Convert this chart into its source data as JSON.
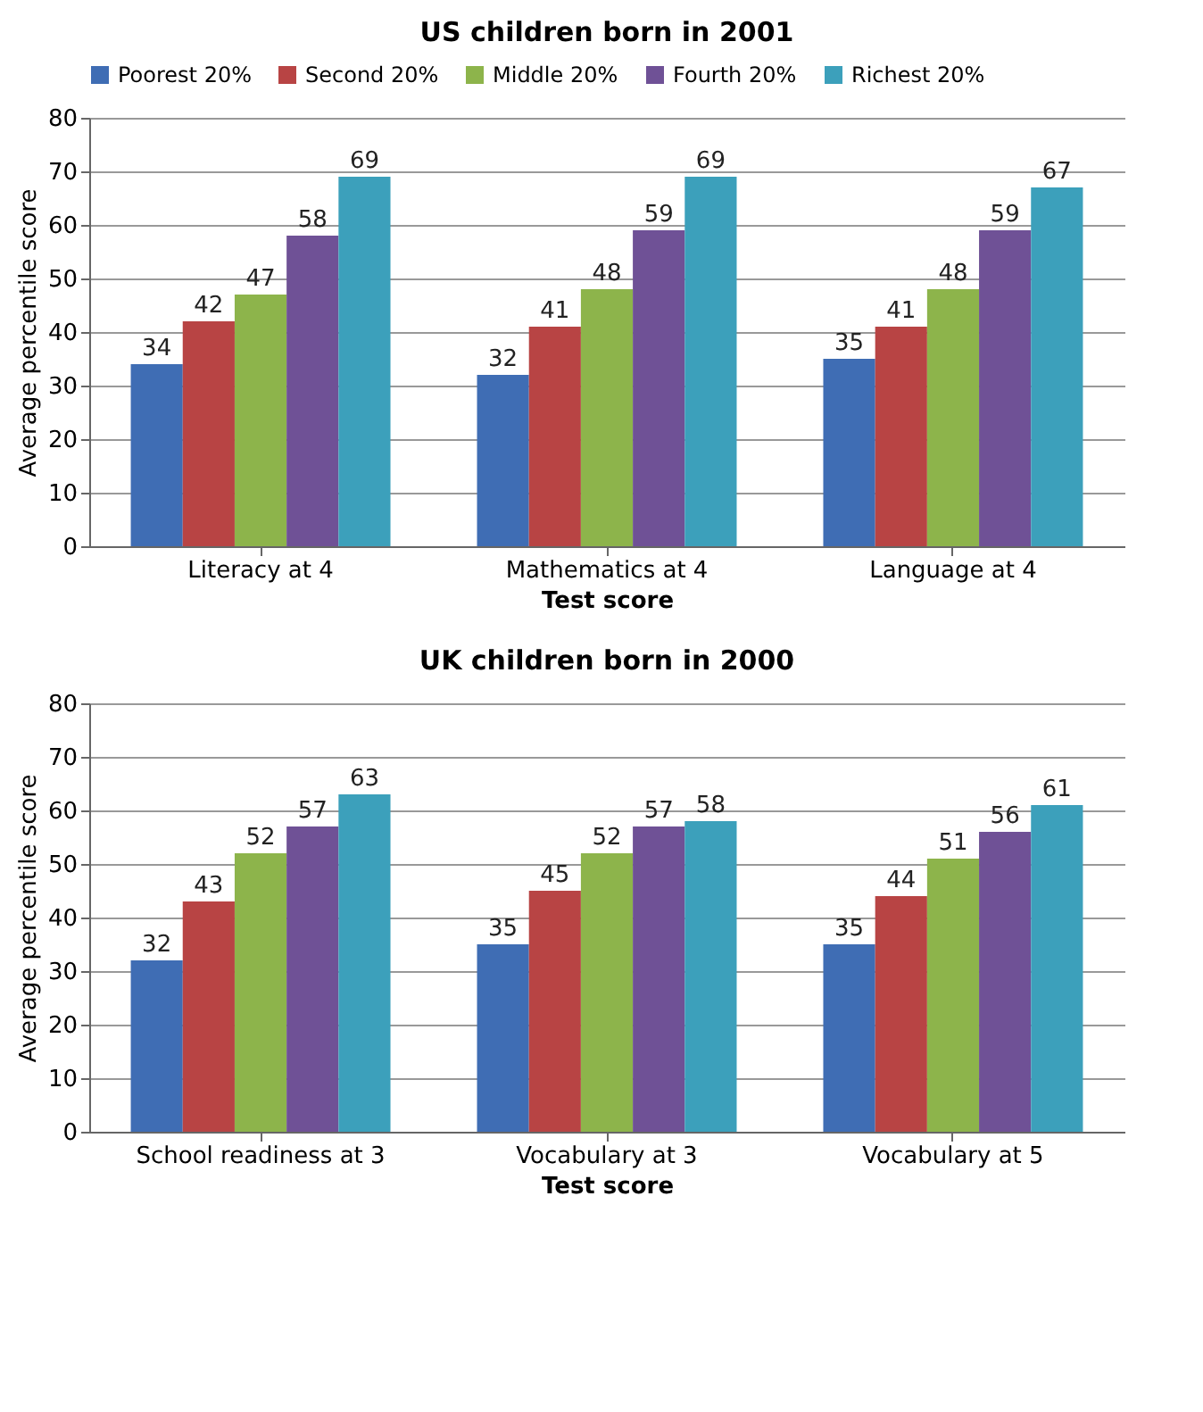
{
  "chart_data": [
    {
      "type": "bar",
      "title": "US children born in 2001",
      "xlabel": "Test score",
      "ylabel": "Average percentile score",
      "categories": [
        "Literacy at 4",
        "Mathematics at 4",
        "Language at 4"
      ],
      "series": [
        {
          "name": "Poorest 20%",
          "color": "#3f6db4",
          "values": [
            34,
            32,
            35
          ]
        },
        {
          "name": "Second 20%",
          "color": "#b84444",
          "values": [
            42,
            41,
            41
          ]
        },
        {
          "name": "Middle 20%",
          "color": "#8db44b",
          "values": [
            47,
            48,
            48
          ]
        },
        {
          "name": "Fourth 20%",
          "color": "#6f5196",
          "values": [
            58,
            59,
            59
          ]
        },
        {
          "name": "Richest 20%",
          "color": "#3ca0bb",
          "values": [
            69,
            69,
            67
          ]
        }
      ],
      "ylim": [
        0,
        80
      ],
      "yticks": [
        0,
        10,
        20,
        30,
        40,
        50,
        60,
        70,
        80
      ],
      "grid": "y",
      "legend": "top",
      "data_labels": true
    },
    {
      "type": "bar",
      "title": "UK children born in 2000",
      "xlabel": "Test score",
      "ylabel": "Average percentile score",
      "categories": [
        "School readiness at 3",
        "Vocabulary at 3",
        "Vocabulary at 5"
      ],
      "series": [
        {
          "color": "#3f6db4",
          "values": [
            32,
            35,
            35
          ]
        },
        {
          "color": "#b84444",
          "values": [
            43,
            45,
            44
          ]
        },
        {
          "color": "#8db44b",
          "values": [
            52,
            52,
            51
          ]
        },
        {
          "color": "#6f5196",
          "values": [
            57,
            57,
            56
          ]
        },
        {
          "color": "#3ca0bb",
          "values": [
            63,
            58,
            61
          ]
        }
      ],
      "ylim": [
        0,
        80
      ],
      "yticks": [
        0,
        10,
        20,
        30,
        40,
        50,
        60,
        70,
        80
      ],
      "grid": "y",
      "legend": false,
      "data_labels": true
    }
  ]
}
